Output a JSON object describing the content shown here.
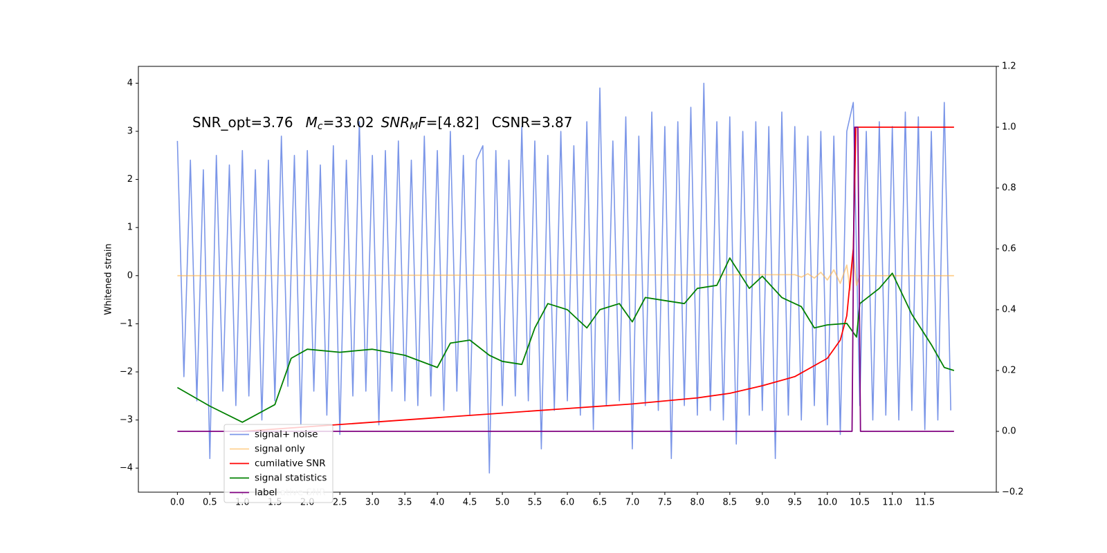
{
  "chart_data": {
    "type": "line",
    "annotation": [
      "SNR_opt=3.76",
      "M",
      "c",
      "=33.02",
      "SNR",
      "M",
      "F",
      "=[4.82]",
      "CSNR=3.87"
    ],
    "ylabel": "Whitened strain",
    "legend_overlap_text": "cumilative SNR",
    "legend": "lower left",
    "xlim": [
      -0.6,
      12.6
    ],
    "xticks": [
      {
        "value": 0,
        "label": "0.0"
      },
      0.5,
      {
        "value": 1,
        "label": "1.0"
      },
      1.5,
      {
        "value": 2,
        "label": "2.0"
      },
      2.5,
      {
        "value": 3,
        "label": "3.0"
      },
      3.5,
      {
        "value": 4,
        "label": "4.0"
      },
      4.5,
      {
        "value": 5,
        "label": "5.0"
      },
      5.5,
      {
        "value": 6,
        "label": "6.0"
      },
      6.5,
      {
        "value": 7,
        "label": "7.0"
      },
      7.5,
      {
        "value": 8,
        "label": "8.0"
      },
      8.5,
      {
        "value": 9,
        "label": "9.0"
      },
      9.5,
      {
        "value": 10,
        "label": "10.0"
      },
      10.5,
      {
        "value": 11,
        "label": "11.0"
      },
      11.5
    ],
    "ylim": [
      -4.5,
      4.35
    ],
    "yticks": [
      {
        "value": -4,
        "label": "−4"
      },
      {
        "value": -3,
        "label": "−3"
      },
      {
        "value": -2,
        "label": "−2"
      },
      {
        "value": -1,
        "label": "−1"
      },
      0,
      1,
      2,
      3,
      4
    ],
    "y2lim": [
      -0.2,
      1.2
    ],
    "y2ticks": [
      {
        "value": -0.2,
        "label": "−0.2"
      },
      {
        "value": 0,
        "label": "0.0"
      },
      0.2,
      0.4,
      0.6,
      0.8,
      {
        "value": 1,
        "label": "1.0"
      },
      1.2
    ],
    "series": [
      {
        "name": "signal+ noise",
        "color": "#7b96e8",
        "x": [
          0.0,
          0.1,
          0.2,
          0.3,
          0.4,
          0.5,
          0.6,
          0.7,
          0.8,
          0.9,
          1.0,
          1.1,
          1.2,
          1.3,
          1.4,
          1.5,
          1.6,
          1.7,
          1.8,
          1.9,
          2.0,
          2.1,
          2.2,
          2.3,
          2.4,
          2.5,
          2.6,
          2.7,
          2.8,
          2.9,
          3.0,
          3.1,
          3.2,
          3.3,
          3.4,
          3.5,
          3.6,
          3.7,
          3.8,
          3.9,
          4.0,
          4.1,
          4.2,
          4.3,
          4.4,
          4.5,
          4.6,
          4.7,
          4.8,
          4.9,
          5.0,
          5.1,
          5.2,
          5.3,
          5.4,
          5.5,
          5.6,
          5.7,
          5.8,
          5.9,
          6.0,
          6.1,
          6.2,
          6.3,
          6.4,
          6.5,
          6.6,
          6.7,
          6.8,
          6.9,
          7.0,
          7.1,
          7.2,
          7.3,
          7.4,
          7.5,
          7.6,
          7.7,
          7.8,
          7.9,
          8.0,
          8.1,
          8.2,
          8.3,
          8.4,
          8.5,
          8.6,
          8.7,
          8.8,
          8.9,
          9.0,
          9.1,
          9.2,
          9.3,
          9.4,
          9.5,
          9.6,
          9.7,
          9.8,
          9.9,
          10.0,
          10.1,
          10.2,
          10.3,
          10.4,
          10.5,
          10.6,
          10.7,
          10.8,
          10.9,
          11.0,
          11.1,
          11.2,
          11.3,
          11.4,
          11.5,
          11.6,
          11.7,
          11.8,
          11.9
        ],
        "values": [
          2.8,
          -2.1,
          2.4,
          -2.6,
          2.2,
          -3.8,
          2.5,
          -2.4,
          2.3,
          -2.7,
          2.6,
          -2.5,
          2.2,
          -3.0,
          2.4,
          -2.6,
          2.9,
          -2.3,
          2.5,
          -3.1,
          2.6,
          -2.4,
          2.3,
          -2.9,
          2.7,
          -3.3,
          2.4,
          -2.5,
          3.2,
          -2.4,
          2.5,
          -3.1,
          2.6,
          -2.4,
          2.8,
          -2.6,
          2.4,
          -2.7,
          2.9,
          -2.5,
          2.6,
          -2.8,
          3.0,
          -2.4,
          2.5,
          -2.9,
          2.4,
          2.7,
          -4.1,
          2.6,
          -2.7,
          2.4,
          -2.5,
          3.1,
          -2.6,
          2.8,
          -3.6,
          2.5,
          -2.8,
          3.0,
          -2.6,
          2.7,
          -2.9,
          3.2,
          -3.2,
          3.9,
          -2.7,
          2.8,
          -2.6,
          3.3,
          -3.6,
          2.9,
          -2.7,
          3.4,
          -2.8,
          3.1,
          -3.8,
          3.2,
          -2.7,
          3.5,
          -2.9,
          4.0,
          -2.8,
          3.2,
          -3.0,
          3.3,
          -3.5,
          3.0,
          -2.9,
          3.2,
          -2.8,
          3.1,
          -3.8,
          3.4,
          -2.9,
          3.1,
          -3.0,
          2.9,
          -2.7,
          3.0,
          -3.1,
          2.9,
          -3.3,
          3.0,
          3.6,
          -2.7,
          3.0,
          -3.0,
          3.2,
          -2.9,
          3.1,
          -3.0,
          3.4,
          -2.8,
          3.3,
          -3.2,
          3.0,
          -3.0,
          3.6,
          -2.8
        ]
      },
      {
        "name": "signal only",
        "color": "#ffb347",
        "x": [
          0.0,
          9.5,
          9.6,
          9.7,
          9.8,
          9.9,
          10.0,
          10.1,
          10.2,
          10.3,
          10.35,
          10.4,
          10.45,
          10.5,
          11.95
        ],
        "values": [
          0,
          0.02,
          -0.03,
          0.04,
          -0.05,
          0.07,
          -0.09,
          0.12,
          -0.16,
          0.22,
          -0.3,
          0.45,
          -0.2,
          0,
          0
        ]
      },
      {
        "name": "cumilative SNR",
        "color": "#ff0000",
        "axis": "y2",
        "x": [
          1.0,
          2.0,
          3.0,
          4.0,
          5.0,
          6.0,
          7.0,
          8.0,
          8.5,
          9.0,
          9.5,
          10.0,
          10.2,
          10.3,
          10.4,
          10.44,
          10.5,
          11.95
        ],
        "values": [
          0.0,
          0.015,
          0.03,
          0.045,
          0.06,
          0.075,
          0.09,
          0.11,
          0.125,
          0.15,
          0.18,
          0.24,
          0.3,
          0.38,
          0.6,
          1.0,
          1.0,
          1.0
        ]
      },
      {
        "name": "signal statistics",
        "color": "#008000",
        "axis": "y2",
        "x": [
          0.0,
          0.5,
          1.0,
          1.5,
          1.75,
          2.0,
          2.5,
          3.0,
          3.5,
          4.0,
          4.2,
          4.5,
          4.8,
          5.0,
          5.3,
          5.5,
          5.7,
          6.0,
          6.3,
          6.5,
          6.8,
          7.0,
          7.2,
          7.5,
          7.8,
          8.0,
          8.3,
          8.5,
          8.8,
          9.0,
          9.3,
          9.6,
          9.8,
          10.0,
          10.3,
          10.45,
          10.5,
          10.8,
          11.0,
          11.3,
          11.6,
          11.8,
          11.95
        ],
        "values": [
          0.144,
          0.083,
          0.03,
          0.088,
          0.24,
          0.27,
          0.26,
          0.27,
          0.25,
          0.21,
          0.29,
          0.3,
          0.25,
          0.23,
          0.22,
          0.34,
          0.42,
          0.4,
          0.34,
          0.4,
          0.42,
          0.36,
          0.44,
          0.43,
          0.42,
          0.47,
          0.48,
          0.57,
          0.47,
          0.51,
          0.44,
          0.41,
          0.34,
          0.35,
          0.355,
          0.31,
          0.42,
          0.47,
          0.52,
          0.385,
          0.285,
          0.21,
          0.2
        ]
      },
      {
        "name": "label",
        "color": "#800080",
        "axis": "y2",
        "x": [
          0.0,
          10.38,
          10.42,
          10.47,
          10.51,
          11.95
        ],
        "values": [
          0,
          0,
          1,
          1,
          0,
          0
        ]
      }
    ]
  }
}
